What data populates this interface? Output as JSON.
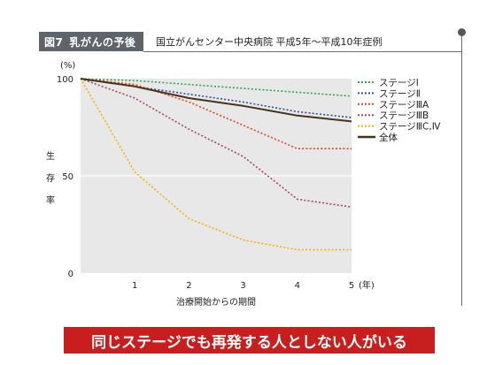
{
  "header": {
    "figure_number": "図7",
    "figure_title": "乳がんの予後",
    "source": "国立がんセンター中央病院 平成5年〜平成10年症例"
  },
  "footer": {
    "banner_text": "同じステージでも再発する人としない人がいる",
    "banner_color": "#c81e1e"
  },
  "chart_data": {
    "type": "line",
    "x": [
      0,
      1,
      2,
      3,
      4,
      5
    ],
    "xlabel": "治療開始からの期間",
    "x_unit": "(年)",
    "ylabel": "生存率",
    "y_unit": "(%)",
    "xlim": [
      0,
      5
    ],
    "ylim": [
      0,
      100
    ],
    "x_ticks": [
      "1",
      "2",
      "3",
      "4",
      "5"
    ],
    "y_ticks": [
      "0",
      "50",
      "100"
    ],
    "grid": "horizontal at 50",
    "plot_background": "#e8e8e8",
    "legend_position": "right",
    "series": [
      {
        "name": "ステージⅠ",
        "color": "#2aa84a",
        "style": "dotted",
        "values": [
          100,
          99,
          97,
          95,
          93,
          91
        ]
      },
      {
        "name": "ステージⅡ",
        "color": "#2353a6",
        "style": "dotted",
        "values": [
          100,
          96,
          92,
          88,
          83,
          80
        ]
      },
      {
        "name": "ステージⅢA",
        "color": "#e0452b",
        "style": "dotted",
        "values": [
          100,
          97,
          88,
          76,
          64,
          64
        ]
      },
      {
        "name": "ステージⅢB",
        "color": "#a84560",
        "style": "dotted",
        "values": [
          100,
          90,
          74,
          60,
          38,
          34
        ]
      },
      {
        "name": "ステージⅢC,Ⅳ",
        "color": "#f2b400",
        "style": "dotted",
        "values": [
          100,
          52,
          28,
          17,
          12,
          12
        ]
      },
      {
        "name": "全体",
        "color": "#4a3218",
        "style": "solid",
        "values": [
          100,
          96,
          90,
          86,
          81,
          78
        ]
      }
    ]
  }
}
